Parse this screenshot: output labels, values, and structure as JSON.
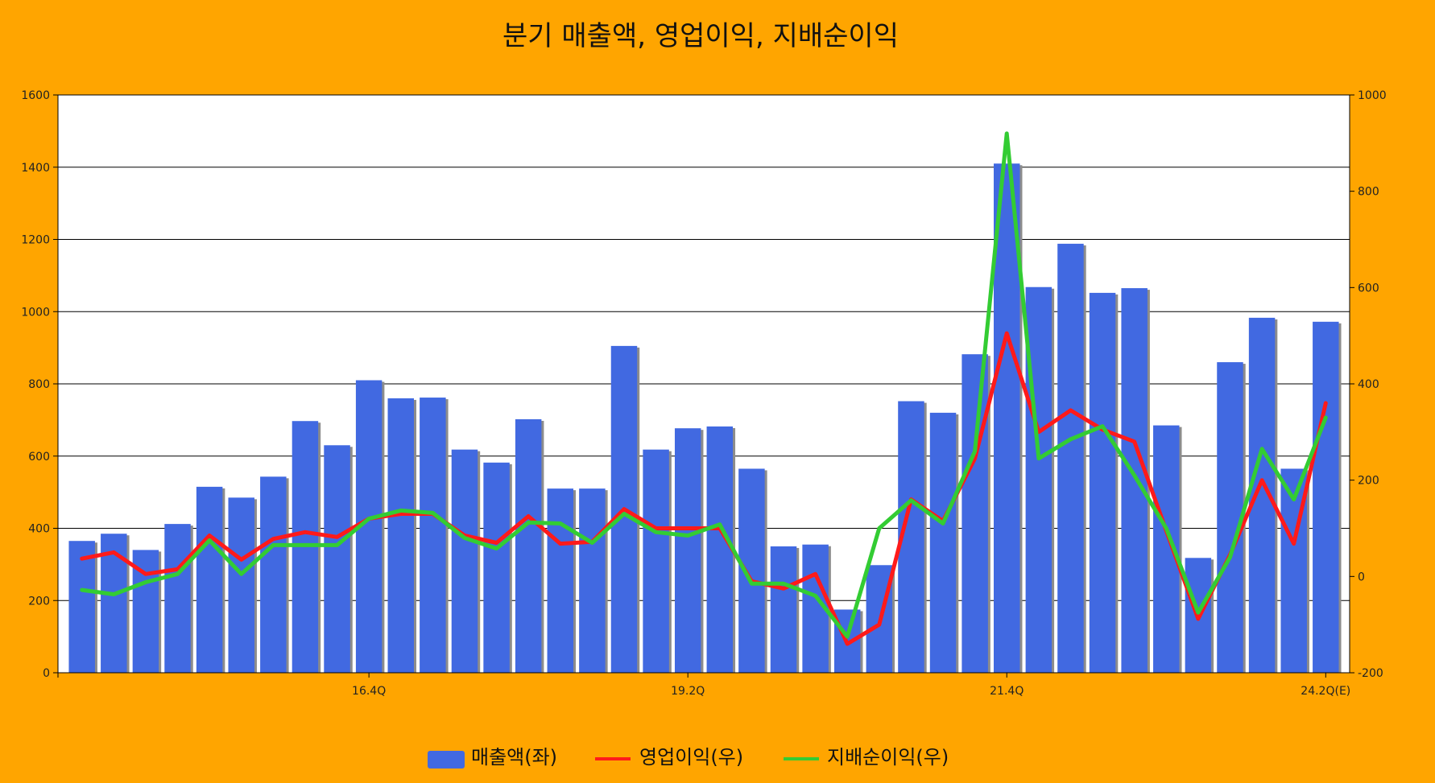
{
  "colors": {
    "background": "#FFA500",
    "plot_background": "#FFFFFF",
    "bar": "#4169E1",
    "bar_shadow": "#8C8C8C",
    "operating_profit": "#FF1A1A",
    "net_profit": "#33CC33",
    "grid": "#000000"
  },
  "chart_data": {
    "type": "bar",
    "title": "분기 매출액, 영업이익, 지배순이익",
    "x_tick_labels": [
      {
        "index": 9,
        "label": "16.4Q"
      },
      {
        "index": 19,
        "label": "19.2Q"
      },
      {
        "index": 29,
        "label": "21.4Q"
      },
      {
        "index": 39,
        "label": "24.2Q(E)"
      }
    ],
    "y_left": {
      "ylim": [
        0,
        1600
      ],
      "ticks": [
        0,
        200,
        400,
        600,
        800,
        1000,
        1200,
        1400,
        1600
      ]
    },
    "y_right": {
      "ylim": [
        -200,
        1000
      ],
      "ticks": [
        -200,
        0,
        200,
        400,
        600,
        800,
        1000
      ]
    },
    "grid": true,
    "legend_position": "bottom-center",
    "series": [
      {
        "name": "매출액(좌)",
        "type": "bar",
        "axis": "left",
        "values": [
          365,
          385,
          340,
          412,
          515,
          485,
          543,
          697,
          630,
          810,
          760,
          762,
          618,
          582,
          702,
          510,
          510,
          905,
          618,
          677,
          682,
          565,
          350,
          355,
          175,
          298,
          752,
          720,
          882,
          1410,
          1068,
          1188,
          1052,
          1065,
          685,
          318,
          860,
          983,
          565,
          972
        ]
      },
      {
        "name": "영업이익(우)",
        "type": "line",
        "axis": "right",
        "values": [
          37,
          50,
          5,
          15,
          85,
          35,
          78,
          92,
          82,
          120,
          130,
          130,
          85,
          70,
          125,
          68,
          72,
          140,
          100,
          100,
          100,
          -10,
          -25,
          5,
          -140,
          -100,
          160,
          115,
          245,
          505,
          300,
          345,
          305,
          280,
          95,
          -88,
          45,
          200,
          68,
          360
        ]
      },
      {
        "name": "지배순이익(우)",
        "type": "line",
        "axis": "right",
        "values": [
          -28,
          -37,
          -12,
          5,
          75,
          5,
          65,
          65,
          65,
          120,
          137,
          132,
          80,
          58,
          112,
          110,
          70,
          130,
          92,
          85,
          108,
          -15,
          -15,
          -40,
          -125,
          100,
          158,
          110,
          260,
          920,
          245,
          285,
          312,
          210,
          100,
          -75,
          40,
          265,
          160,
          330
        ]
      }
    ]
  }
}
